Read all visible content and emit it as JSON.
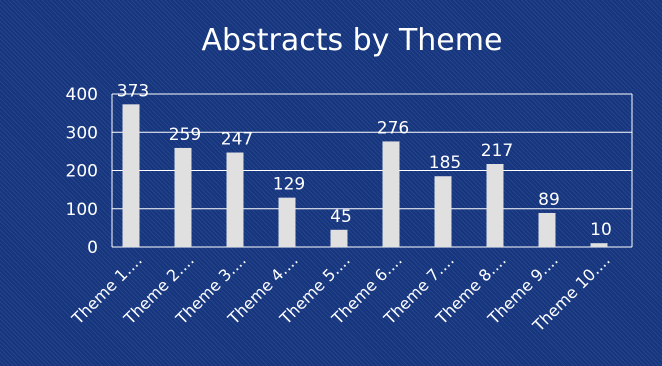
{
  "chart_data": {
    "type": "bar",
    "title": "Abstracts by Theme",
    "xlabel": "",
    "ylabel": "",
    "categories": [
      "Theme 1....",
      "Theme 2....",
      "Theme 3....",
      "Theme 4....",
      "Theme 5....",
      "Theme 6....",
      "Theme 7....",
      "Theme 8....",
      "Theme 9....",
      "Theme 10...."
    ],
    "values": [
      373,
      259,
      247,
      129,
      45,
      276,
      185,
      217,
      89,
      10
    ],
    "ylim": [
      0,
      400
    ],
    "yticks": [
      0,
      100,
      200,
      300,
      400
    ],
    "grid": true,
    "legend": "none",
    "colors": {
      "background": "#15357e",
      "bar": "#e0e0e0",
      "text": "#ffffff"
    }
  }
}
